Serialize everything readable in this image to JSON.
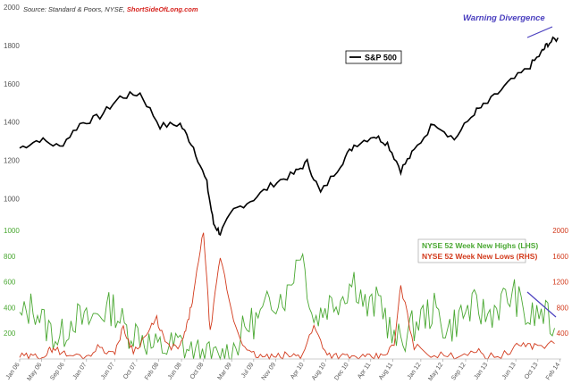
{
  "source": {
    "prefix": "Source: Standard & Poors, NYSE, ",
    "brand": "ShortSideOfLong.com",
    "brand_color": "#d6231e"
  },
  "chart_data": [
    {
      "type": "line",
      "title": "",
      "legend": {
        "label": "S&P 500",
        "placement": "top-center"
      },
      "ylim": [
        900,
        2000
      ],
      "yticks": [
        1000,
        1200,
        1400,
        1600,
        1800,
        2000
      ],
      "ytick_labels": [
        "1000",
        "1200",
        "1400",
        "1600",
        "1800",
        "2000"
      ],
      "grid": false,
      "color": "#000000",
      "series": [
        {
          "x": [
            2006.0,
            2006.3,
            2006.6,
            2006.9,
            2007.2,
            2007.5,
            2007.8,
            2008.1,
            2008.4,
            2008.6,
            2008.8,
            2008.9,
            2009.0,
            2009.2,
            2009.5,
            2009.8,
            2010.1,
            2010.3,
            2010.5,
            2010.8,
            2011.0,
            2011.3,
            2011.5,
            2011.7,
            2011.9,
            2012.2,
            2012.5,
            2012.8,
            2013.0,
            2013.3,
            2013.6,
            2013.8,
            2013.9,
            2014.05
          ],
          "y": [
            1265,
            1310,
            1270,
            1390,
            1430,
            1530,
            1550,
            1380,
            1390,
            1270,
            1080,
            870,
            820,
            940,
            1000,
            1080,
            1130,
            1190,
            1030,
            1180,
            1280,
            1330,
            1290,
            1150,
            1250,
            1400,
            1310,
            1450,
            1500,
            1600,
            1680,
            1760,
            1810,
            1840
          ]
        }
      ],
      "annotation": {
        "text": "Warning Divergence",
        "color": "#4a3fbf"
      }
    },
    {
      "type": "line",
      "ylim_left": [
        0,
        1000
      ],
      "yticks_left": [
        200,
        400,
        600,
        800,
        1000
      ],
      "ytick_labels_left": [
        "200",
        "400",
        "600",
        "800",
        "1000"
      ],
      "ylim_right": [
        0,
        2000
      ],
      "yticks_right": [
        400,
        800,
        1200,
        1600,
        2000
      ],
      "ytick_labels_right": [
        "400",
        "800",
        "1200",
        "1600",
        "2000"
      ],
      "legend_placement": "right",
      "x_tick_labels": [
        "Jan 06",
        "May 06",
        "Sep 06",
        "Jan 07",
        "Jun 07",
        "Oct 07",
        "Feb 08",
        "Jun 08",
        "Oct 08",
        "Mar 09",
        "Jul 09",
        "Nov 09",
        "Apr 10",
        "Aug 10",
        "Dec 10",
        "Apr 11",
        "Aug 11",
        "Jan 12",
        "May 12",
        "Sep 12",
        "Jan 13",
        "Jun 13",
        "Oct 13",
        "Feb 14"
      ],
      "x_tick_values": [
        2006.0,
        2006.33,
        2006.67,
        2007.0,
        2007.42,
        2007.75,
        2008.08,
        2008.42,
        2008.75,
        2009.17,
        2009.5,
        2009.83,
        2010.25,
        2010.58,
        2010.92,
        2011.25,
        2011.58,
        2012.0,
        2012.33,
        2012.67,
        2013.0,
        2013.42,
        2013.75,
        2014.08
      ],
      "series": [
        {
          "name": "NYSE 52 Week New Highs (LHS)",
          "axis": "left",
          "color": "#4aa832",
          "x": [
            2006.0,
            2006.2,
            2006.4,
            2006.6,
            2006.8,
            2007.0,
            2007.2,
            2007.4,
            2007.6,
            2007.8,
            2008.0,
            2008.2,
            2008.4,
            2008.6,
            2008.8,
            2009.0,
            2009.2,
            2009.4,
            2009.6,
            2009.8,
            2010.0,
            2010.2,
            2010.4,
            2010.6,
            2010.8,
            2011.0,
            2011.2,
            2011.4,
            2011.6,
            2011.8,
            2012.0,
            2012.2,
            2012.4,
            2012.6,
            2012.8,
            2013.0,
            2013.2,
            2013.4,
            2013.6,
            2013.8,
            2014.0
          ],
          "y": [
            300,
            420,
            250,
            150,
            330,
            280,
            360,
            400,
            220,
            200,
            80,
            90,
            120,
            40,
            10,
            5,
            80,
            260,
            320,
            480,
            500,
            880,
            300,
            420,
            480,
            620,
            380,
            460,
            120,
            200,
            320,
            380,
            220,
            340,
            400,
            340,
            440,
            500,
            300,
            360,
            240
          ]
        },
        {
          "name": "NYSE 52 Week New Lows (RHS)",
          "axis": "right",
          "color": "#d23a1c",
          "x": [
            2006.0,
            2006.2,
            2006.4,
            2006.5,
            2006.7,
            2007.0,
            2007.2,
            2007.4,
            2007.55,
            2007.7,
            2007.9,
            2008.05,
            2008.2,
            2008.4,
            2008.5,
            2008.6,
            2008.75,
            2008.85,
            2009.0,
            2009.2,
            2009.4,
            2009.6,
            2009.8,
            2010.0,
            2010.2,
            2010.4,
            2010.6,
            2010.8,
            2011.0,
            2011.2,
            2011.4,
            2011.6,
            2011.7,
            2011.9,
            2012.2,
            2012.5,
            2012.8,
            2013.0,
            2013.3,
            2013.5,
            2013.7,
            2014.0
          ],
          "y": [
            40,
            30,
            80,
            180,
            60,
            40,
            200,
            60,
            480,
            120,
            380,
            620,
            200,
            180,
            500,
            1000,
            2000,
            400,
            1600,
            600,
            100,
            40,
            20,
            60,
            40,
            500,
            80,
            40,
            30,
            20,
            40,
            200,
            1140,
            200,
            60,
            40,
            140,
            40,
            80,
            240,
            200,
            240
          ]
        }
      ],
      "annotation": {
        "color": "#4a3fbf"
      }
    }
  ]
}
